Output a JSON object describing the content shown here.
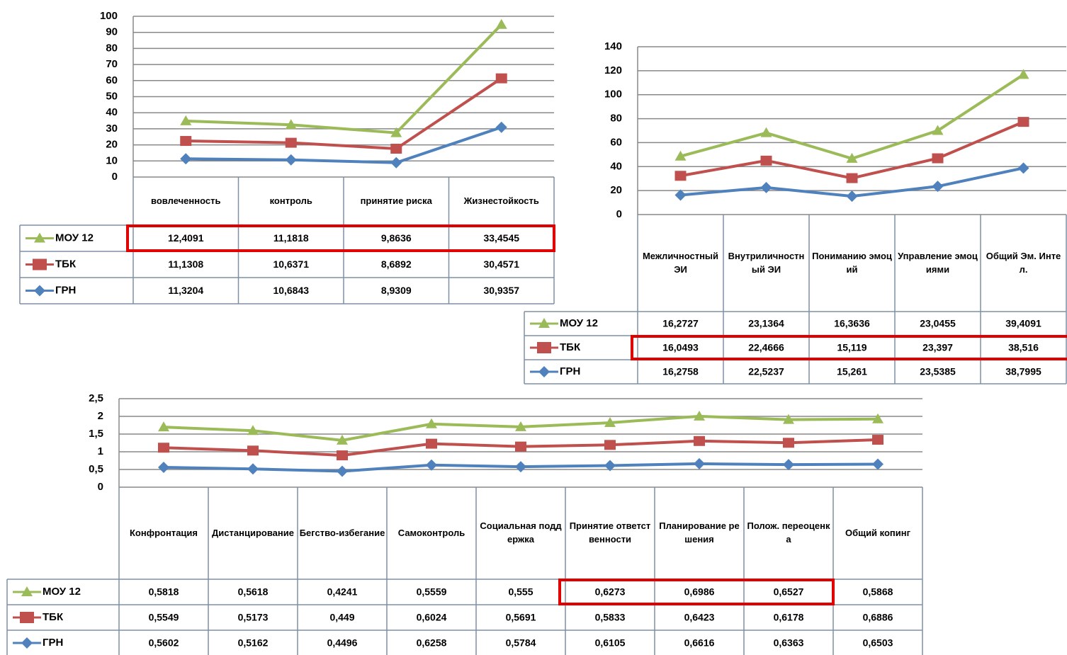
{
  "chart_data": [
    {
      "type": "line",
      "stacked": true,
      "categories": [
        "вовлеченность",
        "контроль",
        "принятие риска",
        "Жизнестойкость"
      ],
      "series": [
        {
          "name": "МОУ 12",
          "color": "#9bbb59",
          "marker": "triangle",
          "values": [
            12.4091,
            11.1818,
            9.8636,
            33.4545
          ],
          "value_labels": [
            "12,4091",
            "11,1818",
            "9,8636",
            "33,4545"
          ]
        },
        {
          "name": "ТБК",
          "color": "#c0504d",
          "marker": "square",
          "values": [
            11.1308,
            10.6371,
            8.6892,
            30.4571
          ],
          "value_labels": [
            "11,1308",
            "10,6371",
            "8,6892",
            "30,4571"
          ]
        },
        {
          "name": "ГРН",
          "color": "#4f81bd",
          "marker": "diamond",
          "values": [
            11.3204,
            10.6843,
            8.9309,
            30.9357
          ],
          "value_labels": [
            "11,3204",
            "10,6843",
            "8,9309",
            "30,9357"
          ]
        }
      ],
      "ylim": [
        0,
        100
      ],
      "yticks": [
        0,
        10,
        20,
        30,
        40,
        50,
        60,
        70,
        80,
        90,
        100
      ],
      "grid": true
    },
    {
      "type": "line",
      "stacked": true,
      "categories": [
        "Межличностный ЭИ",
        "Внутриличностный ЭИ",
        "Пониманию эмоций",
        "Управление эмоциями",
        "Общий Эм. Интел."
      ],
      "series": [
        {
          "name": "МОУ 12",
          "color": "#9bbb59",
          "marker": "triangle",
          "values": [
            16.2727,
            23.1364,
            16.3636,
            23.0455,
            39.4091
          ],
          "value_labels": [
            "16,2727",
            "23,1364",
            "16,3636",
            "23,0455",
            "39,4091"
          ]
        },
        {
          "name": "ТБК",
          "color": "#c0504d",
          "marker": "square",
          "values": [
            16.0493,
            22.4666,
            15.119,
            23.397,
            38.516
          ],
          "value_labels": [
            "16,0493",
            "22,4666",
            "15,119",
            "23,397",
            "38,516"
          ]
        },
        {
          "name": "ГРН",
          "color": "#4f81bd",
          "marker": "diamond",
          "values": [
            16.2758,
            22.5237,
            15.261,
            23.5385,
            38.7995
          ],
          "value_labels": [
            "16,2758",
            "22,5237",
            "15,261",
            "23,5385",
            "38,7995"
          ]
        }
      ],
      "ylim": [
        0,
        140
      ],
      "yticks": [
        0,
        20,
        40,
        60,
        80,
        100,
        120,
        140
      ],
      "grid": true
    },
    {
      "type": "line",
      "stacked": true,
      "categories": [
        "Конфронтация",
        "Дистанцирование",
        "Бегство-избегание",
        "Самоконтроль",
        "Социальная поддержка",
        "Принятие ответственности",
        "Планирование решения",
        "Полож. переоценка",
        "Общий копинг"
      ],
      "series": [
        {
          "name": "МОУ 12",
          "color": "#9bbb59",
          "marker": "triangle",
          "values": [
            0.5818,
            0.5618,
            0.4241,
            0.5559,
            0.555,
            0.6273,
            0.6986,
            0.6527,
            0.5868
          ],
          "value_labels": [
            "0,5818",
            "0,5618",
            "0,4241",
            "0,5559",
            "0,555",
            "0,6273",
            "0,6986",
            "0,6527",
            "0,5868"
          ]
        },
        {
          "name": "ТБК",
          "color": "#c0504d",
          "marker": "square",
          "values": [
            0.5549,
            0.5173,
            0.449,
            0.6024,
            0.5691,
            0.5833,
            0.6423,
            0.6178,
            0.6886
          ],
          "value_labels": [
            "0,5549",
            "0,5173",
            "0,449",
            "0,6024",
            "0,5691",
            "0,5833",
            "0,6423",
            "0,6178",
            "0,6886"
          ]
        },
        {
          "name": "ГРН",
          "color": "#4f81bd",
          "marker": "diamond",
          "values": [
            0.5602,
            0.5162,
            0.4496,
            0.6258,
            0.5784,
            0.6105,
            0.6616,
            0.6363,
            0.6503
          ],
          "value_labels": [
            "0,5602",
            "0,5162",
            "0,4496",
            "0,6258",
            "0,5784",
            "0,6105",
            "0,6616",
            "0,6363",
            "0,6503"
          ]
        }
      ],
      "ylim": [
        0,
        2.5
      ],
      "yticks": [
        0,
        {
          "value": 0.5,
          "label": "0,5"
        },
        1,
        {
          "value": 1.5,
          "label": "1,5"
        },
        2,
        {
          "value": 2.5,
          "label": "2,5"
        }
      ],
      "grid": true
    }
  ]
}
